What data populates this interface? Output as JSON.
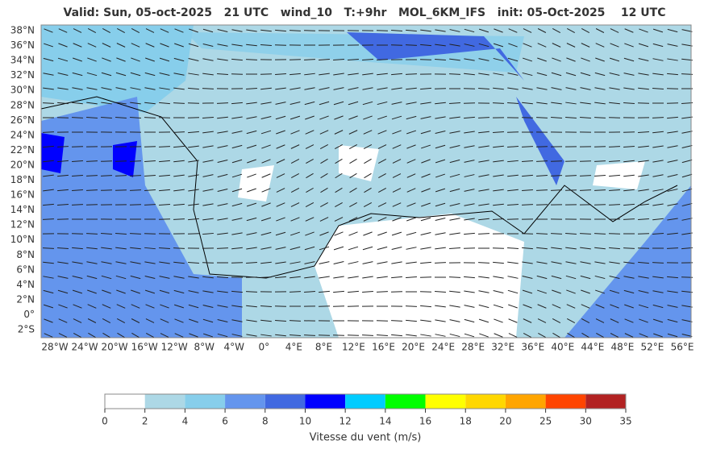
{
  "title": "Valid: Sun, 05-oct-2025   21 UTC   wind_10   T:+9hr   MOL_6KM_IFS   init: 05-Oct-2025    12 UTC",
  "map": {
    "lat_labels": [
      "38°N",
      "36°N",
      "34°N",
      "32°N",
      "30°N",
      "28°N",
      "26°N",
      "24°N",
      "22°N",
      "20°N",
      "18°N",
      "16°N",
      "14°N",
      "12°N",
      "10°N",
      "8°N",
      "6°N",
      "4°N",
      "2°N",
      "0°",
      "2°S"
    ],
    "lon_labels": [
      "28°W",
      "24°W",
      "20°W",
      "16°W",
      "12°W",
      "8°W",
      "4°W",
      "0°",
      "4°E",
      "8°E",
      "12°E",
      "16°E",
      "20°E",
      "24°E",
      "28°E",
      "32°E",
      "36°E",
      "40°E",
      "44°E",
      "48°E",
      "52°E",
      "56°E"
    ]
  },
  "colorbar": {
    "bounds": [
      0,
      2,
      4,
      6,
      8,
      10,
      12,
      14,
      16,
      18,
      20,
      25,
      30,
      35
    ],
    "colors": [
      "#ffffff",
      "#add8e6",
      "#87ceeb",
      "#6495ed",
      "#4169e1",
      "#0000ff",
      "#00ccff",
      "#00ff00",
      "#ffff00",
      "#ffd700",
      "#ffa500",
      "#ff4500",
      "#b22222"
    ],
    "label": "Vitesse du vent (m/s)"
  }
}
